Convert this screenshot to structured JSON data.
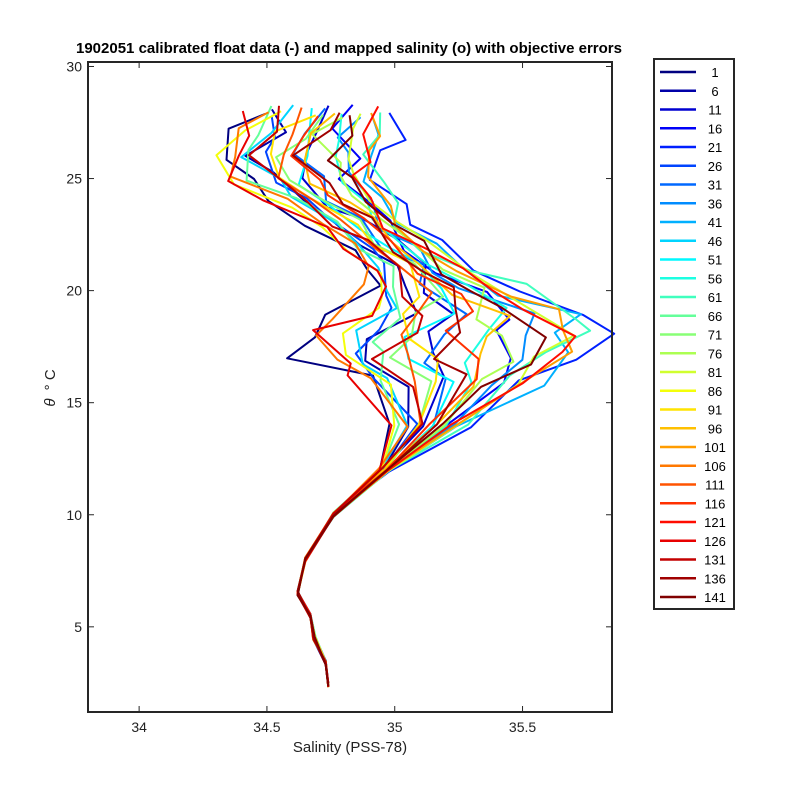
{
  "chart_data": {
    "type": "line",
    "title": "1902051 calibrated float data (-) and mapped salinity (o) with objective errors",
    "xlabel": "Salinity (PSS-78)",
    "ylabel_symbol": "θ",
    "ylabel_unit": "° C",
    "xlim": [
      33.8,
      35.85
    ],
    "ylim": [
      1.2,
      30.2
    ],
    "xticks": [
      34,
      34.5,
      35,
      35.5
    ],
    "xtick_labels": [
      "34",
      "34.5",
      "35",
      "35.5"
    ],
    "yticks": [
      5,
      10,
      15,
      20,
      25,
      30
    ],
    "ytick_labels": [
      "5",
      "10",
      "15",
      "20",
      "25",
      "30"
    ],
    "grid": false,
    "legend_position": "outside-right",
    "colormap": "jet",
    "series": [
      {
        "name": "1",
        "color": "#000080"
      },
      {
        "name": "6",
        "color": "#0000a8"
      },
      {
        "name": "11",
        "color": "#0000d0"
      },
      {
        "name": "16",
        "color": "#0000f8"
      },
      {
        "name": "21",
        "color": "#0020ff"
      },
      {
        "name": "26",
        "color": "#0044ff"
      },
      {
        "name": "31",
        "color": "#0068ff"
      },
      {
        "name": "36",
        "color": "#008cff"
      },
      {
        "name": "41",
        "color": "#00b0ff"
      },
      {
        "name": "46",
        "color": "#00d4ff"
      },
      {
        "name": "51",
        "color": "#00f8ff"
      },
      {
        "name": "56",
        "color": "#1cffe2"
      },
      {
        "name": "61",
        "color": "#40ffbe"
      },
      {
        "name": "66",
        "color": "#64ff9a"
      },
      {
        "name": "71",
        "color": "#88ff76"
      },
      {
        "name": "76",
        "color": "#acff52"
      },
      {
        "name": "81",
        "color": "#d0ff2e"
      },
      {
        "name": "86",
        "color": "#f4ff0a"
      },
      {
        "name": "91",
        "color": "#ffe400"
      },
      {
        "name": "96",
        "color": "#ffc000"
      },
      {
        "name": "101",
        "color": "#ff9c00"
      },
      {
        "name": "106",
        "color": "#ff7800"
      },
      {
        "name": "111",
        "color": "#ff5400"
      },
      {
        "name": "116",
        "color": "#ff3000"
      },
      {
        "name": "121",
        "color": "#ff0c00"
      },
      {
        "name": "126",
        "color": "#e80000"
      },
      {
        "name": "131",
        "color": "#c40000"
      },
      {
        "name": "136",
        "color": "#a00000"
      },
      {
        "name": "141",
        "color": "#800000"
      }
    ],
    "profile_shape": {
      "theta": [
        2.4,
        3.4,
        4.5,
        5.5,
        6.5,
        8.0,
        10.0,
        12.0,
        14.0,
        16.0,
        17.0,
        18.0,
        19.0,
        20.0,
        21.0,
        22.0,
        23.0,
        24.0,
        25.0,
        26.0,
        27.0,
        28.0
      ],
      "salinity_west": [
        34.74,
        34.73,
        34.68,
        34.67,
        34.62,
        34.65,
        34.76,
        34.94,
        35.0,
        34.85,
        34.68,
        34.62,
        34.78,
        34.88,
        34.9,
        34.82,
        34.68,
        34.52,
        34.38,
        34.3,
        34.36,
        34.45
      ],
      "salinity_east": [
        34.74,
        34.73,
        34.69,
        34.67,
        34.62,
        34.65,
        34.76,
        34.98,
        35.28,
        35.55,
        35.72,
        35.8,
        35.72,
        35.5,
        35.3,
        35.15,
        35.05,
        35.0,
        34.97,
        34.96,
        34.97,
        34.99
      ]
    }
  }
}
